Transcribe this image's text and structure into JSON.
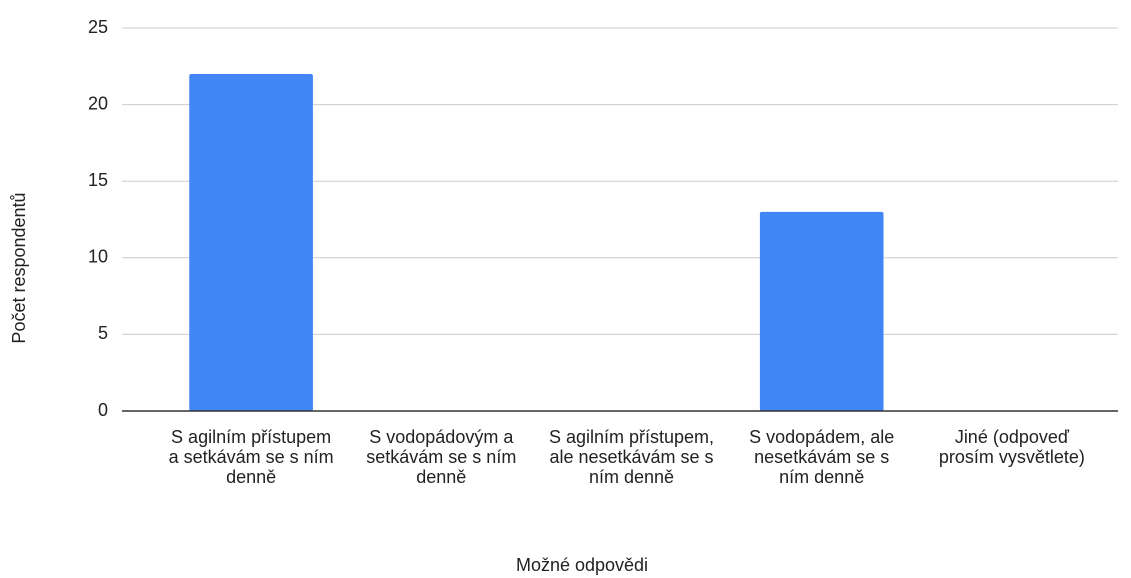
{
  "chart_data": {
    "type": "bar",
    "categories": [
      "S agilním přístupem a setkávám se s ním denně",
      "S vodopádovým a setkávám se s ním denně",
      "S agilním přístupem, ale nesetkávám se s ním denně",
      "S vodopádem, ale nesetkávám se s ním denně",
      "Jiné (odpoveď prosím vysvětlete)"
    ],
    "values": [
      22,
      0,
      0,
      13,
      0
    ],
    "color": "#4285f4",
    "ylim": [
      0,
      25
    ],
    "yticks": [
      0,
      5,
      10,
      15,
      20,
      25
    ],
    "grid": true,
    "x_label": "Možné odpovědi",
    "y_label": "Počet respondentů"
  }
}
